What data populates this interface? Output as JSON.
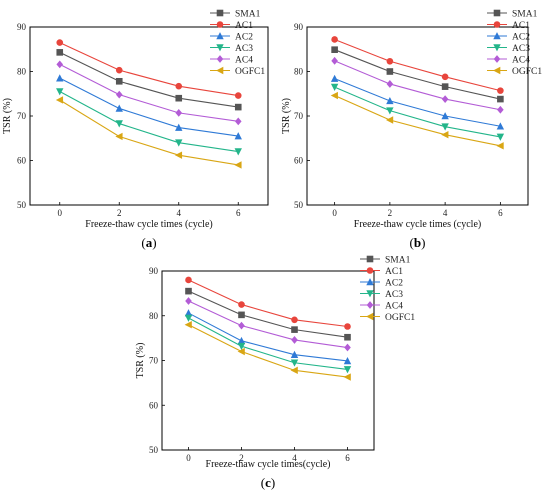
{
  "chart_data": [
    {
      "type": "line",
      "panel_label": "(a)",
      "panel_letter": "a",
      "xlabel": "Freeze-thaw cycle times (cycle)",
      "ylabel": "TSR (%)",
      "x": [
        0,
        2,
        4,
        6
      ],
      "xlim": [
        -1,
        7
      ],
      "ylim": [
        50,
        90
      ],
      "yticks": [
        50,
        60,
        70,
        80,
        90
      ],
      "grid": false,
      "legend_position": "top-right",
      "series": [
        {
          "name": "SMA1",
          "color": "#555555",
          "marker": "square",
          "values": [
            84.3,
            77.8,
            74.0,
            72.0
          ]
        },
        {
          "name": "AC1",
          "color": "#e8453c",
          "marker": "circle",
          "values": [
            86.5,
            80.3,
            76.7,
            74.6
          ]
        },
        {
          "name": "AC2",
          "color": "#2f7ad6",
          "marker": "triangle-up",
          "values": [
            78.5,
            71.7,
            67.4,
            65.5
          ]
        },
        {
          "name": "AC3",
          "color": "#23b58a",
          "marker": "triangle-down",
          "values": [
            75.5,
            68.3,
            64.0,
            62.0
          ]
        },
        {
          "name": "AC4",
          "color": "#b35cd6",
          "marker": "diamond",
          "values": [
            81.6,
            74.8,
            70.7,
            68.8
          ]
        },
        {
          "name": "OGFC1",
          "color": "#d9a614",
          "marker": "triangle-left",
          "values": [
            73.6,
            65.4,
            61.2,
            59.0
          ]
        }
      ]
    },
    {
      "type": "line",
      "panel_label": "(b)",
      "panel_letter": "b",
      "xlabel": "Freeze-thaw cycle times (cycle)",
      "ylabel": "TSR (%)",
      "x": [
        0,
        2,
        4,
        6
      ],
      "xlim": [
        -1,
        7
      ],
      "ylim": [
        50,
        90
      ],
      "yticks": [
        50,
        60,
        70,
        80,
        90
      ],
      "grid": false,
      "legend_position": "top-right",
      "series": [
        {
          "name": "SMA1",
          "color": "#555555",
          "marker": "square",
          "values": [
            84.9,
            80.0,
            76.6,
            73.8
          ]
        },
        {
          "name": "AC1",
          "color": "#e8453c",
          "marker": "circle",
          "values": [
            87.2,
            82.3,
            78.8,
            75.7
          ]
        },
        {
          "name": "AC2",
          "color": "#2f7ad6",
          "marker": "triangle-up",
          "values": [
            78.4,
            73.4,
            70.0,
            67.7
          ]
        },
        {
          "name": "AC3",
          "color": "#23b58a",
          "marker": "triangle-down",
          "values": [
            76.5,
            71.2,
            67.6,
            65.3
          ]
        },
        {
          "name": "AC4",
          "color": "#b35cd6",
          "marker": "diamond",
          "values": [
            82.4,
            77.2,
            73.8,
            71.4
          ]
        },
        {
          "name": "OGFC1",
          "color": "#d9a614",
          "marker": "triangle-left",
          "values": [
            74.6,
            69.1,
            65.8,
            63.3
          ]
        }
      ]
    },
    {
      "type": "line",
      "panel_label": "(c)",
      "panel_letter": "c",
      "xlabel": "Freeze-thaw cycle times(cycle)",
      "ylabel": "TSR (%)",
      "x": [
        0,
        2,
        4,
        6
      ],
      "xlim": [
        -1,
        7
      ],
      "ylim": [
        50,
        90
      ],
      "yticks": [
        50,
        60,
        70,
        80,
        90
      ],
      "grid": false,
      "legend_position": "top-right",
      "series": [
        {
          "name": "SMA1",
          "color": "#555555",
          "marker": "square",
          "values": [
            85.5,
            80.2,
            76.9,
            75.2
          ]
        },
        {
          "name": "AC1",
          "color": "#e8453c",
          "marker": "circle",
          "values": [
            88.0,
            82.5,
            79.1,
            77.6
          ]
        },
        {
          "name": "AC2",
          "color": "#2f7ad6",
          "marker": "triangle-up",
          "values": [
            80.6,
            74.4,
            71.3,
            69.9
          ]
        },
        {
          "name": "AC3",
          "color": "#23b58a",
          "marker": "triangle-down",
          "values": [
            79.5,
            73.2,
            69.5,
            68.0
          ]
        },
        {
          "name": "AC4",
          "color": "#b35cd6",
          "marker": "diamond",
          "values": [
            83.3,
            77.8,
            74.6,
            72.9
          ]
        },
        {
          "name": "OGFC1",
          "color": "#d9a614",
          "marker": "triangle-left",
          "values": [
            78.0,
            72.0,
            67.8,
            66.3
          ]
        }
      ]
    }
  ]
}
